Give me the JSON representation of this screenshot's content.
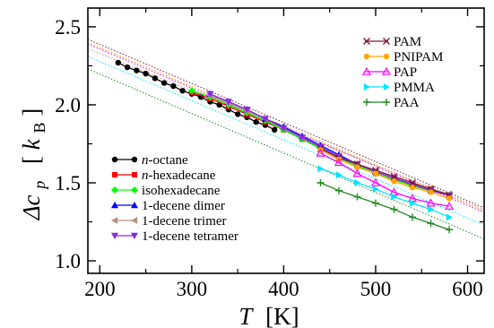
{
  "chart_data": {
    "type": "line",
    "xlabel": {
      "italic": "T",
      "unit": "[K]"
    },
    "ylabel": {
      "italic": "Δc",
      "sub": "p",
      "unit_open": "[",
      "unit_k": "k",
      "unit_sub": "B",
      "unit_close": "]"
    },
    "xlim": [
      187,
      618
    ],
    "ylim": [
      0.92,
      2.62
    ],
    "xticks": [
      200,
      300,
      400,
      500,
      600
    ],
    "yticks": [
      1.0,
      1.5,
      2.0,
      2.5
    ],
    "xtick_labels": [
      "200",
      "300",
      "400",
      "500",
      "600"
    ],
    "ytick_labels": [
      "1.0",
      "1.5",
      "2.0",
      "2.5"
    ],
    "grid": false,
    "legend_left": {
      "placement": "bottom-left"
    },
    "legend_right": {
      "placement": "top-right"
    },
    "fits": [
      {
        "color": "#7a1a3a",
        "x": [
          187,
          618
        ],
        "y": [
          2.42,
          1.34
        ]
      },
      {
        "color": "#ffa500",
        "x": [
          187,
          618
        ],
        "y": [
          2.4,
          1.32
        ]
      },
      {
        "color": "#ff00ff",
        "x": [
          187,
          618
        ],
        "y": [
          2.39,
          1.31
        ]
      },
      {
        "color": "#00e5ff",
        "x": [
          187,
          618
        ],
        "y": [
          2.31,
          1.23
        ]
      },
      {
        "color": "#1e8b1e",
        "x": [
          187,
          618
        ],
        "y": [
          2.23,
          1.14
        ]
      },
      {
        "color": "#b89080",
        "x": [
          187,
          618
        ],
        "y": [
          2.36,
          1.33
        ]
      }
    ],
    "series": [
      {
        "name_pre": "",
        "name_italic": "n",
        "name_post": "-octane",
        "color": "#000000",
        "marker": "circle",
        "x": [
          220,
          230,
          240,
          250,
          260,
          270,
          280,
          290,
          300,
          310,
          320,
          330,
          340,
          350,
          360,
          370,
          380,
          390
        ],
        "y": [
          2.27,
          2.24,
          2.22,
          2.2,
          2.17,
          2.14,
          2.12,
          2.09,
          2.07,
          2.05,
          2.02,
          2.0,
          1.97,
          1.94,
          1.92,
          1.89,
          1.87,
          1.84
        ]
      },
      {
        "name_pre": "",
        "name_italic": "n",
        "name_post": "-hexadecane",
        "color": "#ff0000",
        "marker": "square",
        "x": [
          300,
          320,
          340,
          360,
          380,
          400,
          420,
          440,
          460,
          480,
          500,
          520,
          540,
          560
        ],
        "y": [
          2.08,
          2.04,
          1.99,
          1.94,
          1.89,
          1.84,
          1.78,
          1.72,
          1.66,
          1.61,
          1.56,
          1.52,
          1.49,
          1.46
        ]
      },
      {
        "name_pre": "isohexadecane",
        "name_italic": "",
        "name_post": "",
        "color": "#00ff00",
        "marker": "diamond",
        "x": [
          300,
          320,
          340,
          360,
          380,
          400,
          420,
          440,
          460,
          480,
          500,
          520,
          540,
          560
        ],
        "y": [
          2.09,
          2.05,
          2.0,
          1.95,
          1.9,
          1.84,
          1.78,
          1.72,
          1.66,
          1.61,
          1.56,
          1.52,
          1.48,
          1.45
        ]
      },
      {
        "name_pre": "1-decene dimer",
        "name_italic": "",
        "name_post": "",
        "color": "#0000ff",
        "marker": "triangle-up",
        "x": [
          320,
          340,
          360,
          380,
          400,
          420,
          440,
          460,
          480,
          500,
          520,
          540,
          560,
          580
        ],
        "y": [
          2.07,
          2.02,
          1.97,
          1.91,
          1.86,
          1.8,
          1.74,
          1.68,
          1.62,
          1.57,
          1.53,
          1.49,
          1.45,
          1.42
        ]
      },
      {
        "name_pre": "1-decene trimer",
        "name_italic": "",
        "name_post": "",
        "color": "#b89080",
        "marker": "triangle-left",
        "x": [
          320,
          340,
          360,
          380,
          400,
          420,
          440,
          460,
          480,
          500,
          520,
          540,
          560,
          580
        ],
        "y": [
          2.06,
          2.01,
          1.96,
          1.91,
          1.85,
          1.79,
          1.73,
          1.67,
          1.62,
          1.57,
          1.53,
          1.49,
          1.46,
          1.43
        ]
      },
      {
        "name_pre": "1-decene tetramer",
        "name_italic": "",
        "name_post": "",
        "color": "#8a2be2",
        "marker": "triangle-down",
        "x": [
          320,
          340,
          360,
          380,
          400,
          420,
          440,
          460,
          480,
          500,
          520,
          540,
          560,
          580
        ],
        "y": [
          2.07,
          2.02,
          1.97,
          1.91,
          1.85,
          1.79,
          1.73,
          1.67,
          1.62,
          1.57,
          1.53,
          1.49,
          1.45,
          1.42
        ]
      },
      {
        "name_pre": "PAM",
        "name_italic": "",
        "name_post": "",
        "color": "#7a1a3a",
        "marker": "x",
        "x": [
          440,
          460,
          480,
          500,
          520,
          540,
          560,
          580
        ],
        "y": [
          1.72,
          1.66,
          1.62,
          1.58,
          1.54,
          1.5,
          1.46,
          1.42
        ]
      },
      {
        "name_pre": "PNIPAM",
        "name_italic": "",
        "name_post": "",
        "color": "#ffa500",
        "marker": "circle",
        "x": [
          440,
          460,
          480,
          500,
          520,
          540,
          560,
          580
        ],
        "y": [
          1.71,
          1.65,
          1.6,
          1.56,
          1.51,
          1.47,
          1.44,
          1.4
        ]
      },
      {
        "name_pre": "PAP",
        "name_italic": "",
        "name_post": "",
        "color": "#ff00ff",
        "marker": "triangle-up-open",
        "x": [
          440,
          460,
          480,
          500,
          520,
          540,
          560,
          580
        ],
        "y": [
          1.69,
          1.63,
          1.56,
          1.5,
          1.44,
          1.4,
          1.37,
          1.35
        ]
      },
      {
        "name_pre": "PMMA",
        "name_italic": "",
        "name_post": "",
        "color": "#00e5ff",
        "marker": "triangle-right",
        "x": [
          440,
          460,
          480,
          500,
          520,
          540,
          560,
          580
        ],
        "y": [
          1.59,
          1.55,
          1.5,
          1.46,
          1.41,
          1.37,
          1.33,
          1.28
        ]
      },
      {
        "name_pre": "PAA",
        "name_italic": "",
        "name_post": "",
        "color": "#1e8b1e",
        "marker": "plus",
        "x": [
          440,
          460,
          480,
          500,
          520,
          540,
          560,
          580
        ],
        "y": [
          1.5,
          1.45,
          1.41,
          1.37,
          1.33,
          1.28,
          1.24,
          1.2
        ]
      }
    ]
  }
}
